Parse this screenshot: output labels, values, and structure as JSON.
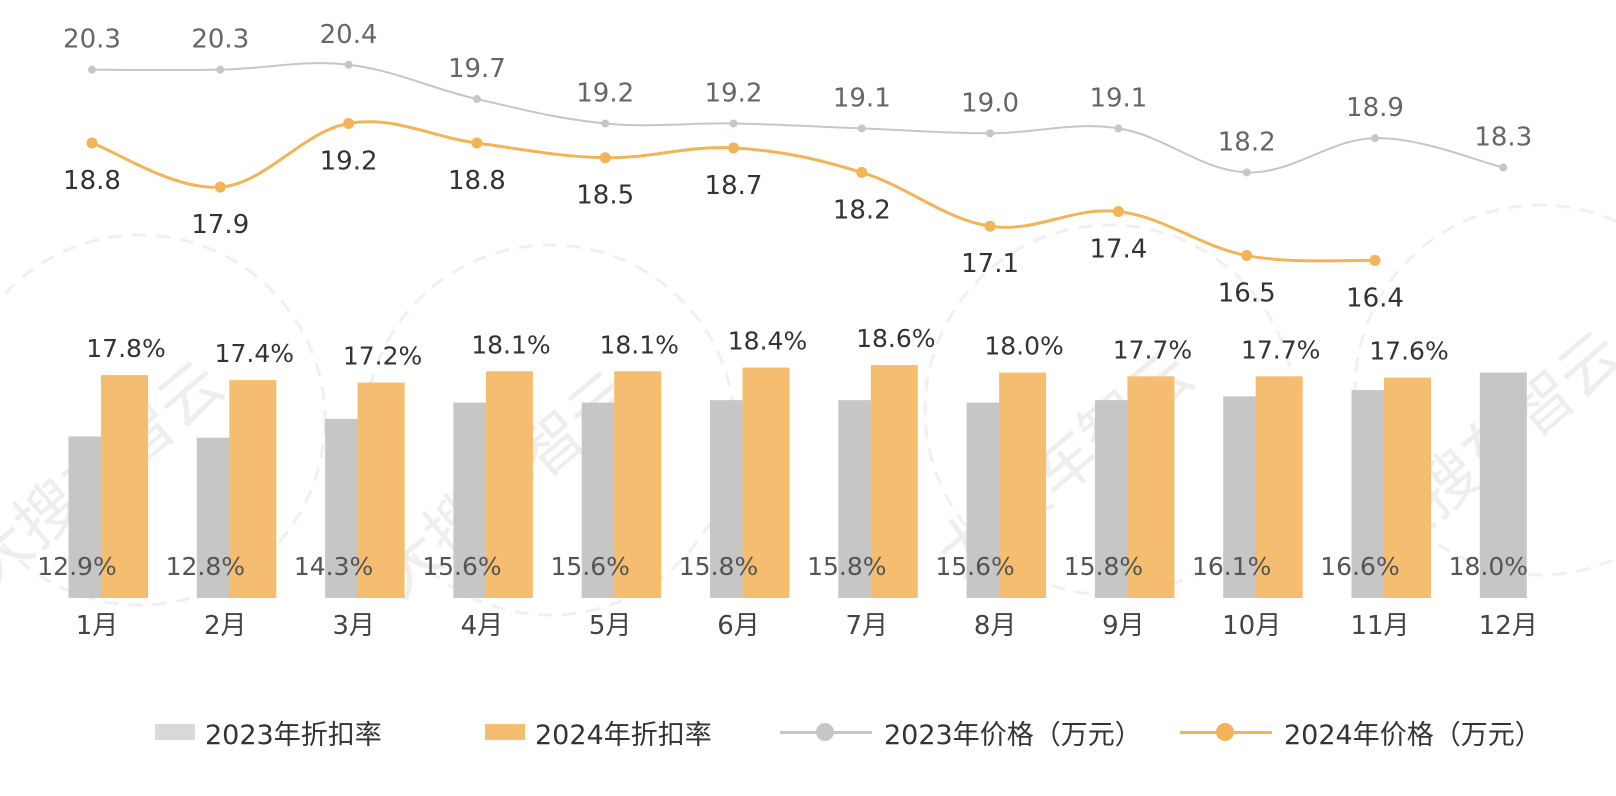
{
  "chart_data": {
    "type": "bar+line",
    "categories": [
      "1月",
      "2月",
      "3月",
      "4月",
      "5月",
      "6月",
      "7月",
      "8月",
      "9月",
      "10月",
      "11月",
      "12月"
    ],
    "bar_series": [
      {
        "name": "2023年折扣率",
        "color": "#c6c6c6",
        "values": [
          12.9,
          12.8,
          14.3,
          15.6,
          15.6,
          15.8,
          15.8,
          15.6,
          15.8,
          16.1,
          16.6,
          18.0
        ],
        "labels": [
          "12.9%",
          "12.8%",
          "14.3%",
          "15.6%",
          "15.6%",
          "15.8%",
          "15.8%",
          "15.6%",
          "15.8%",
          "16.1%",
          "16.6%",
          "18.0%"
        ]
      },
      {
        "name": "2024年折扣率",
        "color": "#f5bd6f",
        "values": [
          17.8,
          17.4,
          17.2,
          18.1,
          18.1,
          18.4,
          18.6,
          18.0,
          17.7,
          17.7,
          17.6,
          null
        ],
        "labels": [
          "17.8%",
          "17.4%",
          "17.2%",
          "18.1%",
          "18.1%",
          "18.4%",
          "18.6%",
          "18.0%",
          "17.7%",
          "17.7%",
          "17.6%",
          ""
        ]
      }
    ],
    "line_series": [
      {
        "name": "2023年价格（万元）",
        "color": "#c6c6c6",
        "values": [
          20.3,
          20.3,
          20.4,
          19.7,
          19.2,
          19.2,
          19.1,
          19.0,
          19.1,
          18.2,
          18.9,
          18.3
        ],
        "labels": [
          "20.3",
          "20.3",
          "20.4",
          "19.7",
          "19.2",
          "19.2",
          "19.1",
          "19.0",
          "19.1",
          "18.2",
          "18.9",
          "18.3"
        ]
      },
      {
        "name": "2024年价格（万元）",
        "color": "#f2b457",
        "values": [
          18.8,
          17.9,
          19.2,
          18.8,
          18.5,
          18.7,
          18.2,
          17.1,
          17.4,
          16.5,
          16.4,
          null
        ],
        "labels": [
          "18.8",
          "17.9",
          "19.2",
          "18.8",
          "18.5",
          "18.7",
          "18.2",
          "17.1",
          "17.4",
          "16.5",
          "16.4",
          ""
        ]
      }
    ],
    "bar_axis_range": [
      0,
      21
    ],
    "line_axis_range": [
      16.0,
      20.6
    ],
    "gridlines": false,
    "legend_position": "bottom",
    "watermark": "大搜车智云"
  },
  "legend": {
    "items": [
      {
        "label": "2023年折扣率"
      },
      {
        "label": "2024年折扣率"
      },
      {
        "label": "2023年价格（万元）"
      },
      {
        "label": "2024年价格（万元）"
      }
    ]
  }
}
